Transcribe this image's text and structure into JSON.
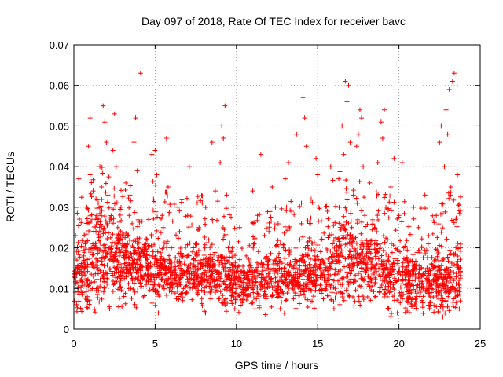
{
  "chart_data": {
    "type": "scatter",
    "title": "Day 097 of 2018, Rate Of TEC Index for receiver bavc",
    "xlabel": "GPS time / hours",
    "ylabel": "ROTI / TECUs",
    "xlim": [
      0,
      25
    ],
    "ylim": [
      0,
      0.07
    ],
    "xticks": [
      "0",
      "5",
      "10",
      "15",
      "20",
      "25"
    ],
    "yticks": [
      "0",
      "0.01",
      "0.02",
      "0.03",
      "0.04",
      "0.05",
      "0.06",
      "0.07"
    ],
    "grid": true,
    "marker": "+",
    "color": "#ff0000",
    "series": [
      {
        "points": [
          [
            0.1,
            0.023
          ],
          [
            0.2,
            0.015
          ],
          [
            0.3,
            0.037
          ],
          [
            0.4,
            0.012
          ],
          [
            0.5,
            0.009
          ],
          [
            0.6,
            0.018
          ],
          [
            0.7,
            0.021
          ],
          [
            0.8,
            0.03
          ],
          [
            0.9,
            0.045
          ],
          [
            1.0,
            0.052
          ],
          [
            1.0,
            0.038
          ],
          [
            1.1,
            0.016
          ],
          [
            1.2,
            0.013
          ],
          [
            1.3,
            0.02
          ],
          [
            1.4,
            0.028
          ],
          [
            1.5,
            0.031
          ],
          [
            1.6,
            0.04
          ],
          [
            1.7,
            0.035
          ],
          [
            1.8,
            0.055
          ],
          [
            1.9,
            0.051
          ],
          [
            2.0,
            0.046
          ],
          [
            2.1,
            0.033
          ],
          [
            2.2,
            0.005
          ],
          [
            2.3,
            0.027
          ],
          [
            2.4,
            0.044
          ],
          [
            2.5,
            0.053
          ],
          [
            2.6,
            0.04
          ],
          [
            2.7,
            0.025
          ],
          [
            2.8,
            0.018
          ],
          [
            2.9,
            0.03
          ],
          [
            3.0,
            0.022
          ],
          [
            3.1,
            0.014
          ],
          [
            3.2,
            0.036
          ],
          [
            3.4,
            0.028
          ],
          [
            3.5,
            0.01
          ],
          [
            3.6,
            0.012
          ],
          [
            3.7,
            0.046
          ],
          [
            3.8,
            0.052
          ],
          [
            3.9,
            0.039
          ],
          [
            4.0,
            0.02
          ],
          [
            4.1,
            0.063
          ],
          [
            4.3,
            0.018
          ],
          [
            4.5,
            0.022
          ],
          [
            4.6,
            0.027
          ],
          [
            4.8,
            0.043
          ],
          [
            4.9,
            0.032
          ],
          [
            5.0,
            0.044
          ],
          [
            5.1,
            0.038
          ],
          [
            5.2,
            0.004
          ],
          [
            5.3,
            0.015
          ],
          [
            5.5,
            0.025
          ],
          [
            5.7,
            0.047
          ],
          [
            5.8,
            0.035
          ],
          [
            6.0,
            0.02
          ],
          [
            6.2,
            0.012
          ],
          [
            6.4,
            0.03
          ],
          [
            6.5,
            0.024
          ],
          [
            6.7,
            0.007
          ],
          [
            6.8,
            0.016
          ],
          [
            7.0,
            0.028
          ],
          [
            7.1,
            0.04
          ],
          [
            7.3,
            0.019
          ],
          [
            7.5,
            0.01
          ],
          [
            7.7,
            0.025
          ],
          [
            7.9,
            0.031
          ],
          [
            8.0,
            0.014
          ],
          [
            8.1,
            0.004
          ],
          [
            8.3,
            0.022
          ],
          [
            8.5,
            0.046
          ],
          [
            8.7,
            0.034
          ],
          [
            8.9,
            0.018
          ],
          [
            9.0,
            0.041
          ],
          [
            9.1,
            0.05
          ],
          [
            9.2,
            0.047
          ],
          [
            9.3,
            0.055
          ],
          [
            9.4,
            0.033
          ],
          [
            9.5,
            0.02
          ],
          [
            9.6,
            0.011
          ],
          [
            9.7,
            0.016
          ],
          [
            9.8,
            0.03
          ],
          [
            9.9,
            0.005
          ],
          [
            10.0,
            0.014
          ],
          [
            10.2,
            0.025
          ],
          [
            10.4,
            0.009
          ],
          [
            10.6,
            0.018
          ],
          [
            10.8,
            0.012
          ],
          [
            11.0,
            0.034
          ],
          [
            11.1,
            0.021
          ],
          [
            11.3,
            0.028
          ],
          [
            11.5,
            0.043
          ],
          [
            11.6,
            0.016
          ],
          [
            11.8,
            0.01
          ],
          [
            12.0,
            0.024
          ],
          [
            12.2,
            0.035
          ],
          [
            12.4,
            0.03
          ],
          [
            12.5,
            0.013
          ],
          [
            12.7,
            0.005
          ],
          [
            12.9,
            0.02
          ],
          [
            13.0,
            0.037
          ],
          [
            13.2,
            0.041
          ],
          [
            13.4,
            0.029
          ],
          [
            13.5,
            0.015
          ],
          [
            13.7,
            0.048
          ],
          [
            13.9,
            0.022
          ],
          [
            14.0,
            0.031
          ],
          [
            14.1,
            0.057
          ],
          [
            14.2,
            0.052
          ],
          [
            14.3,
            0.045
          ],
          [
            14.4,
            0.011
          ],
          [
            14.5,
            0.026
          ],
          [
            14.6,
            0.032
          ],
          [
            14.8,
            0.018
          ],
          [
            14.9,
            0.042
          ],
          [
            15.0,
            0.038
          ],
          [
            15.2,
            0.022
          ],
          [
            15.4,
            0.013
          ],
          [
            15.6,
            0.029
          ],
          [
            15.8,
            0.04
          ],
          [
            16.0,
            0.005
          ],
          [
            16.1,
            0.017
          ],
          [
            16.3,
            0.037
          ],
          [
            16.5,
            0.05
          ],
          [
            16.6,
            0.043
          ],
          [
            16.7,
            0.061
          ],
          [
            16.8,
            0.056
          ],
          [
            16.9,
            0.06
          ],
          [
            17.0,
            0.046
          ],
          [
            17.1,
            0.025
          ],
          [
            17.2,
            0.033
          ],
          [
            17.4,
            0.045
          ],
          [
            17.5,
            0.048
          ],
          [
            17.6,
            0.054
          ],
          [
            17.7,
            0.052
          ],
          [
            17.8,
            0.04
          ],
          [
            17.9,
            0.028
          ],
          [
            18.0,
            0.018
          ],
          [
            18.2,
            0.036
          ],
          [
            18.3,
            0.012
          ],
          [
            18.5,
            0.025
          ],
          [
            18.7,
            0.041
          ],
          [
            18.9,
            0.051
          ],
          [
            19.0,
            0.047
          ],
          [
            19.1,
            0.054
          ],
          [
            19.2,
            0.03
          ],
          [
            19.3,
            0.022
          ],
          [
            19.4,
            0.014
          ],
          [
            19.5,
            0.035
          ],
          [
            19.7,
            0.042
          ],
          [
            19.9,
            0.004
          ],
          [
            20.0,
            0.028
          ],
          [
            20.2,
            0.041
          ],
          [
            20.3,
            0.02
          ],
          [
            20.5,
            0.011
          ],
          [
            20.7,
            0.017
          ],
          [
            20.9,
            0.03
          ],
          [
            21.0,
            0.006
          ],
          [
            21.2,
            0.025
          ],
          [
            21.4,
            0.013
          ],
          [
            21.6,
            0.033
          ],
          [
            21.8,
            0.021
          ],
          [
            22.0,
            0.009
          ],
          [
            22.1,
            0.015
          ],
          [
            22.3,
            0.028
          ],
          [
            22.5,
            0.046
          ],
          [
            22.6,
            0.05
          ],
          [
            22.7,
            0.003
          ],
          [
            22.8,
            0.04
          ],
          [
            22.9,
            0.054
          ],
          [
            23.0,
            0.048
          ],
          [
            23.1,
            0.059
          ],
          [
            23.2,
            0.035
          ],
          [
            23.3,
            0.061
          ],
          [
            23.4,
            0.063
          ],
          [
            23.5,
            0.027
          ],
          [
            23.6,
            0.038
          ],
          [
            23.7,
            0.012
          ],
          [
            23.8,
            0.02
          ]
        ]
      }
    ],
    "cluster": {
      "segments": [
        [
          0.0,
          0.012,
          0.02,
          0.006
        ],
        [
          1.5,
          0.018,
          0.03,
          0.01
        ],
        [
          2.5,
          0.018,
          0.026,
          0.008
        ],
        [
          4.0,
          0.015,
          0.022,
          0.006
        ],
        [
          5.0,
          0.015,
          0.025,
          0.006
        ],
        [
          6.5,
          0.013,
          0.02,
          0.005
        ],
        [
          8.0,
          0.014,
          0.022,
          0.006
        ],
        [
          9.5,
          0.012,
          0.018,
          0.005
        ],
        [
          10.5,
          0.011,
          0.015,
          0.004
        ],
        [
          12.0,
          0.012,
          0.018,
          0.005
        ],
        [
          13.5,
          0.012,
          0.02,
          0.005
        ],
        [
          15.0,
          0.013,
          0.02,
          0.005
        ],
        [
          16.5,
          0.016,
          0.028,
          0.008
        ],
        [
          18.0,
          0.016,
          0.024,
          0.007
        ],
        [
          19.5,
          0.013,
          0.022,
          0.006
        ],
        [
          21.0,
          0.011,
          0.018,
          0.005
        ],
        [
          22.5,
          0.012,
          0.022,
          0.006
        ],
        [
          23.8,
          0.012,
          0.022,
          0.006
        ]
      ],
      "count": 2600
    }
  }
}
